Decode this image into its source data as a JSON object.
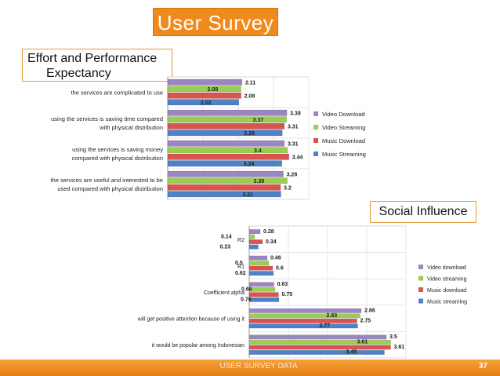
{
  "slide": {
    "title": "User Survey",
    "footer_text": "USER SURVEY DATA",
    "page_number": "37"
  },
  "sections": {
    "effort_line1": "Effort and Performance",
    "effort_line2": "Expectancy",
    "social": "Social Influence"
  },
  "chart_data": [
    {
      "type": "bar",
      "orientation": "horizontal",
      "title": "Effort and Performance Expectancy",
      "categories": [
        [
          "the services are complicated to use"
        ],
        [
          "using the services is saving time compared",
          "with physical distribution"
        ],
        [
          "using the services is saving money",
          "compared with physical distribution"
        ],
        [
          "the services are useful and interested to be",
          "used compared with physical distribution"
        ]
      ],
      "xlim": [
        0,
        4
      ],
      "series": [
        {
          "name": "Video Download",
          "color": "#9b86c1",
          "values": [
            2.11,
            3.38,
            3.31,
            3.28
          ]
        },
        {
          "name": "Video Streaming",
          "color": "#9acd54",
          "values": [
            2.08,
            3.37,
            3.4,
            3.39
          ]
        },
        {
          "name": "Music Download",
          "color": "#d9534f",
          "values": [
            2.08,
            3.31,
            3.44,
            3.2
          ]
        },
        {
          "name": "Music Streaming",
          "color": "#4f81c7",
          "values": [
            2.02,
            3.25,
            3.24,
            3.21
          ]
        }
      ]
    },
    {
      "type": "bar",
      "orientation": "horizontal",
      "title": "Social Influence",
      "categories": [
        [
          "R2"
        ],
        [
          "R1"
        ],
        [
          "Coefficient alpha"
        ],
        [
          "will get positive attention because of using it"
        ],
        [
          "it would be popular among Indonesian"
        ]
      ],
      "xlim": [
        0,
        4
      ],
      "series": [
        {
          "name": "Video download",
          "color": "#9b86c1",
          "values": [
            0.28,
            0.46,
            0.63,
            2.86,
            3.5
          ]
        },
        {
          "name": "Video streaming",
          "color": "#9acd54",
          "values": [
            0.14,
            0.5,
            0.66,
            2.83,
            3.61
          ]
        },
        {
          "name": "Music download",
          "color": "#d9534f",
          "values": [
            0.34,
            0.6,
            0.75,
            2.75,
            3.61
          ]
        },
        {
          "name": "Music streaming",
          "color": "#4f81c7",
          "values": [
            0.23,
            0.62,
            0.76,
            2.77,
            3.45
          ]
        }
      ]
    }
  ]
}
